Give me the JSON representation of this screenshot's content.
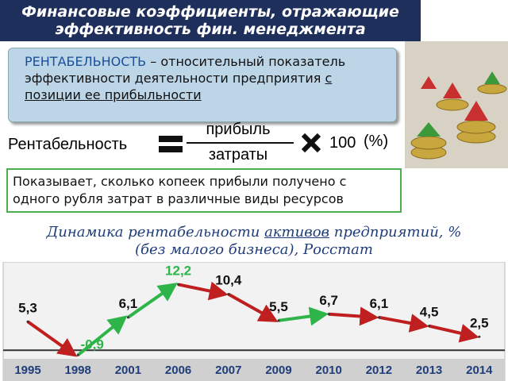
{
  "header": {
    "title_lines": [
      "Финансовые коэффициенты, отражающие",
      "эффективность фин. менеджмента"
    ]
  },
  "definition": {
    "term": "РЕНТАБЕЛЬНОСТЬ",
    "text": " – относительный показатель эффективности деятельности предприятия ",
    "underlined": "с позиции ее прибыльности"
  },
  "formula": {
    "left": "Рентабельность",
    "numerator": "прибыль",
    "denominator": "затраты",
    "multiplier": "100",
    "unit": "(%)"
  },
  "note": "Показывает, сколько копеек прибыли получено с одного рубля затрат в различные виды ресурсов",
  "chart_data": {
    "type": "line",
    "title_parts": [
      "Динамика рентабельности ",
      "активов",
      " предприятий, %",
      "(без малого бизнеса), Росстат"
    ],
    "categories": [
      "1995",
      "1998",
      "2001",
      "2006",
      "2007",
      "2009",
      "2010",
      "2012",
      "2013",
      "2014"
    ],
    "values": [
      5.3,
      -0.9,
      6.1,
      12.2,
      10.4,
      5.5,
      6.7,
      6.1,
      4.5,
      2.5
    ],
    "value_labels": [
      "5,3",
      "-0,9",
      "6,1",
      "12,2",
      "10,4",
      "5,5",
      "6,7",
      "6,1",
      "4,5",
      "2,5"
    ],
    "rise_color": "#2fb44a",
    "fall_color": "#c01f1f",
    "ylim": [
      -1,
      13
    ]
  }
}
